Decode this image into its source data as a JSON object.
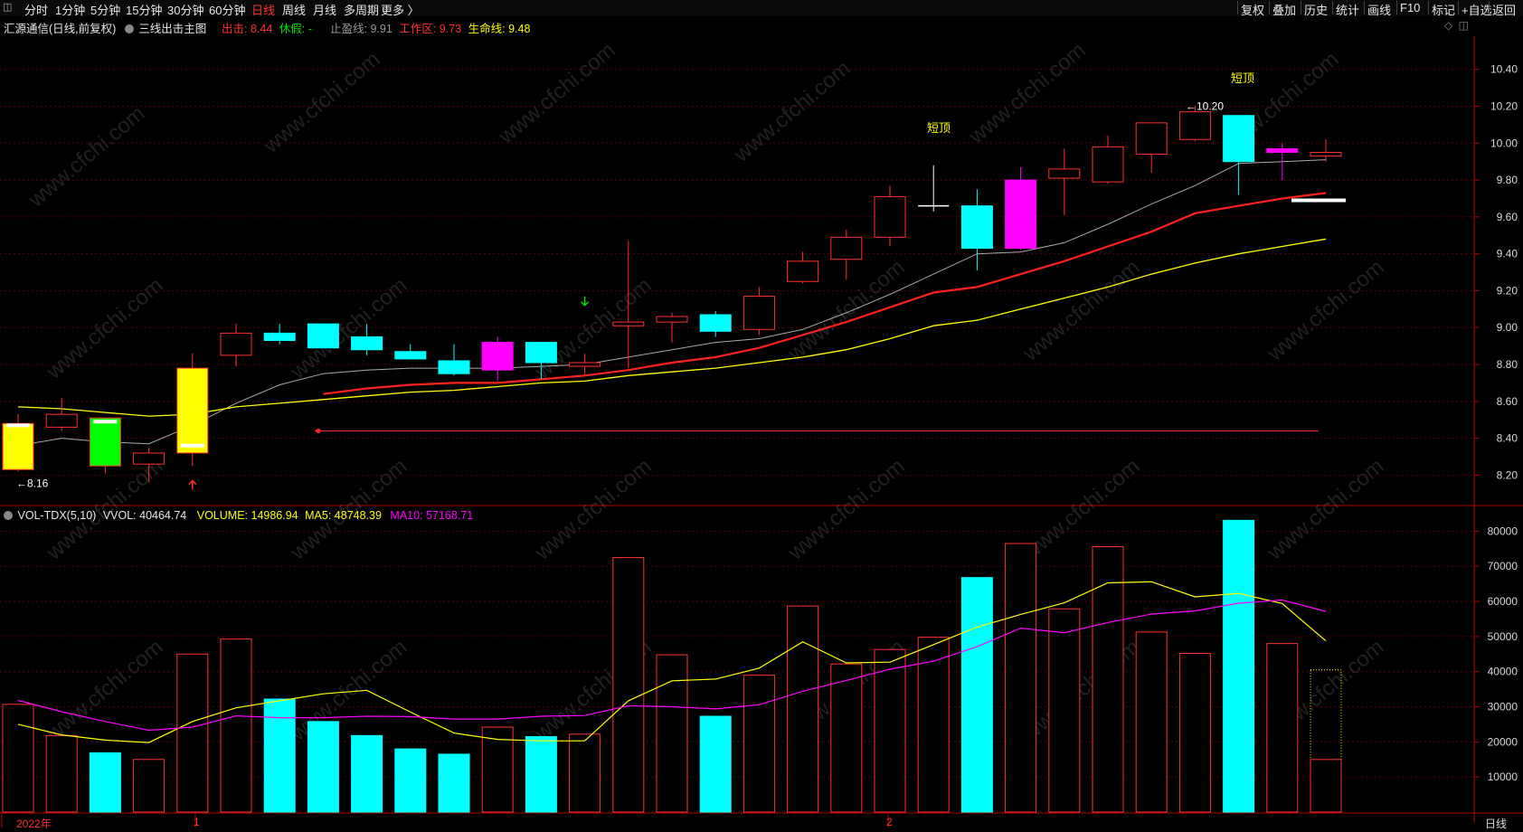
{
  "toolbar": {
    "icon_left": "window-icon",
    "periods": [
      "分时",
      "1分钟",
      "5分钟",
      "15分钟",
      "30分钟",
      "60分钟",
      "日线",
      "周线",
      "月线",
      "多周期",
      "更多 〉"
    ],
    "active_period": "日线",
    "right_buttons": [
      "复权",
      "叠加",
      "历史",
      "统计",
      "画线",
      "F10",
      "标记",
      "+自选",
      "返回"
    ]
  },
  "main_status": {
    "stock": "汇源通信(日线,前复权)",
    "indicator_name": "三线出击主图",
    "chuji_label": "出击:",
    "chuji_value": "8.44",
    "xiujia_label": "休假:",
    "xiujia_value": "-",
    "zhiying_label": "止盈线:",
    "zhiying_value": "9.91",
    "gongzuo_label": "工作区:",
    "gongzuo_value": "9.73",
    "shengming_label": "生命线:",
    "shengming_value": "9.48",
    "colors": {
      "chuji": "#ff3030",
      "xiujia": "#00e000",
      "zhiying": "#999999",
      "gongzuo": "#ff3030",
      "shengming": "#ffff00"
    }
  },
  "vol_status": {
    "name": "VOL-TDX(5,10)",
    "vvol_label": "VVOL:",
    "vvol_value": "40464.74",
    "volume_label": "VOLUME:",
    "volume_value": "14986.94",
    "ma5_label": "MA5:",
    "ma5_value": "48748.39",
    "ma10_label": "MA10:",
    "ma10_value": "57168.71"
  },
  "annotations": {
    "low_label": "←8.16",
    "high_label": "←10.20",
    "short_top_1": "短顶",
    "short_top_2": "短顶"
  },
  "x_labels": [
    "2022年",
    "1",
    "2"
  ],
  "period_label": "日线",
  "watermark": "www.cfchi.com",
  "colors": {
    "up": "#ff3030",
    "down": "#00ffff",
    "ma_short": "#aaaaaa",
    "ma_mid": "#ff2020",
    "ma_long": "#ffff00",
    "vol_ma5": "#ffff00",
    "vol_ma10": "#ff00ff"
  },
  "chart_data": [
    {
      "type": "candlestick",
      "title": "三线出击主图",
      "ylim": [
        8.05,
        10.58
      ],
      "y_ticks": [
        "10.40",
        "10.20",
        "10.00",
        "9.80",
        "9.60",
        "9.40",
        "9.20",
        "9.00",
        "8.80",
        "8.60",
        "8.40",
        "8.20"
      ],
      "candles": [
        {
          "o": 8.48,
          "h": 8.53,
          "l": 8.22,
          "c": 8.23,
          "fill": "yellow"
        },
        {
          "o": 8.46,
          "h": 8.62,
          "l": 8.44,
          "c": 8.53,
          "fill": "hollow"
        },
        {
          "o": 8.51,
          "h": 8.51,
          "l": 8.21,
          "c": 8.25,
          "fill": "green"
        },
        {
          "o": 8.26,
          "h": 8.35,
          "l": 8.16,
          "c": 8.32,
          "fill": "hollow"
        },
        {
          "o": 8.32,
          "h": 8.86,
          "l": 8.25,
          "c": 8.78,
          "fill": "yellow"
        },
        {
          "o": 8.85,
          "h": 9.02,
          "l": 8.79,
          "c": 8.97,
          "fill": "hollow"
        },
        {
          "o": 8.97,
          "h": 9.02,
          "l": 8.91,
          "c": 8.93,
          "fill": "cyan"
        },
        {
          "o": 9.02,
          "h": 9.02,
          "l": 8.89,
          "c": 8.89,
          "fill": "cyan"
        },
        {
          "o": 8.95,
          "h": 9.02,
          "l": 8.85,
          "c": 8.88,
          "fill": "cyan"
        },
        {
          "o": 8.87,
          "h": 8.91,
          "l": 8.83,
          "c": 8.83,
          "fill": "cyan"
        },
        {
          "o": 8.82,
          "h": 8.91,
          "l": 8.74,
          "c": 8.75,
          "fill": "cyan"
        },
        {
          "o": 8.77,
          "h": 8.95,
          "l": 8.71,
          "c": 8.92,
          "fill": "magenta"
        },
        {
          "o": 8.92,
          "h": 8.92,
          "l": 8.72,
          "c": 8.81,
          "fill": "cyan"
        },
        {
          "o": 8.79,
          "h": 8.86,
          "l": 8.74,
          "c": 8.81,
          "fill": "hollow"
        },
        {
          "o": 9.01,
          "h": 9.47,
          "l": 8.78,
          "c": 9.03,
          "fill": "hollow"
        },
        {
          "o": 9.03,
          "h": 9.08,
          "l": 8.92,
          "c": 9.06,
          "fill": "hollow"
        },
        {
          "o": 9.07,
          "h": 9.09,
          "l": 8.95,
          "c": 8.98,
          "fill": "cyan"
        },
        {
          "o": 8.99,
          "h": 9.22,
          "l": 8.96,
          "c": 9.17,
          "fill": "hollow"
        },
        {
          "o": 9.25,
          "h": 9.41,
          "l": 9.24,
          "c": 9.36,
          "fill": "hollow"
        },
        {
          "o": 9.37,
          "h": 9.53,
          "l": 9.26,
          "c": 9.49,
          "fill": "hollow"
        },
        {
          "o": 9.49,
          "h": 9.77,
          "l": 9.44,
          "c": 9.71,
          "fill": "hollow"
        },
        {
          "o": 9.66,
          "h": 9.88,
          "l": 9.63,
          "c": 9.66,
          "fill": "doji"
        },
        {
          "o": 9.66,
          "h": 9.75,
          "l": 9.31,
          "c": 9.43,
          "fill": "cyan"
        },
        {
          "o": 9.43,
          "h": 9.87,
          "l": 9.42,
          "c": 9.8,
          "fill": "magenta"
        },
        {
          "o": 9.81,
          "h": 9.97,
          "l": 9.61,
          "c": 9.86,
          "fill": "hollow"
        },
        {
          "o": 9.79,
          "h": 10.04,
          "l": 9.78,
          "c": 9.98,
          "fill": "hollow"
        },
        {
          "o": 9.94,
          "h": 10.11,
          "l": 9.84,
          "c": 10.11,
          "fill": "hollow"
        },
        {
          "o": 10.02,
          "h": 10.2,
          "l": 10.01,
          "c": 10.17,
          "fill": "hollow"
        },
        {
          "o": 10.15,
          "h": 10.15,
          "l": 9.72,
          "c": 9.9,
          "fill": "cyan"
        },
        {
          "o": 9.97,
          "h": 10.0,
          "l": 9.8,
          "c": 9.95,
          "fill": "magenta"
        },
        {
          "o": 9.93,
          "h": 10.02,
          "l": 9.9,
          "c": 9.95,
          "fill": "hollow"
        }
      ],
      "series": [
        {
          "name": "止盈线",
          "values": [
            8.36,
            8.4,
            8.38,
            8.37,
            8.47,
            8.59,
            8.69,
            8.75,
            8.77,
            8.78,
            8.78,
            8.78,
            8.79,
            8.8,
            8.84,
            8.88,
            8.92,
            8.94,
            8.99,
            9.08,
            9.18,
            9.29,
            9.4,
            9.41,
            9.46,
            9.56,
            9.67,
            9.77,
            9.89,
            9.9,
            9.91
          ]
        },
        {
          "name": "工作区",
          "values": [
            null,
            null,
            null,
            null,
            null,
            null,
            null,
            8.64,
            8.67,
            8.69,
            8.7,
            8.7,
            8.72,
            8.74,
            8.77,
            8.81,
            8.84,
            8.89,
            8.96,
            9.03,
            9.11,
            9.19,
            9.22,
            9.29,
            9.36,
            9.44,
            9.52,
            9.62,
            9.66,
            9.7,
            9.73
          ]
        },
        {
          "name": "生命线",
          "values": [
            8.57,
            8.56,
            8.54,
            8.52,
            8.53,
            8.57,
            8.59,
            8.61,
            8.63,
            8.65,
            8.66,
            8.68,
            8.7,
            8.71,
            8.74,
            8.76,
            8.78,
            8.81,
            8.84,
            8.88,
            8.94,
            9.01,
            9.04,
            9.1,
            9.16,
            9.22,
            9.29,
            9.35,
            9.4,
            9.44,
            9.48
          ]
        }
      ],
      "chuji_line": 8.44
    },
    {
      "type": "bar",
      "title": "VOL-TDX(5,10)",
      "ylim": [
        0,
        85000
      ],
      "y_ticks": [
        "80000",
        "70000",
        "60000",
        "50000",
        "40000",
        "30000",
        "20000",
        "10000"
      ],
      "values": [
        30700,
        21800,
        16900,
        15000,
        45000,
        49300,
        32200,
        25800,
        21800,
        18000,
        16500,
        24200,
        21500,
        22200,
        72500,
        44800,
        27300,
        39000,
        58700,
        42200,
        46300,
        49800,
        66800,
        76500,
        57900,
        75600,
        51300,
        45200,
        83100,
        48000,
        40500
      ],
      "current_volume": 14986.94,
      "series": [
        {
          "name": "MA5",
          "values": [
            25000,
            22000,
            20500,
            19800,
            25800,
            29700,
            31700,
            33700,
            34700,
            28500,
            22500,
            20700,
            20300,
            20300,
            31700,
            37400,
            37900,
            41000,
            48500,
            42500,
            42700,
            47700,
            52700,
            56300,
            59600,
            65300,
            65600,
            61300,
            62300,
            59400,
            48750
          ]
        },
        {
          "name": "MA10",
          "values": [
            31800,
            28600,
            25800,
            23300,
            24200,
            27400,
            26900,
            26900,
            27300,
            27200,
            26500,
            26500,
            27300,
            27500,
            30300,
            30000,
            29400,
            30600,
            34400,
            37500,
            40700,
            43000,
            47100,
            52400,
            51100,
            54000,
            56400,
            57300,
            59500,
            60400,
            57170
          ]
        }
      ]
    }
  ]
}
